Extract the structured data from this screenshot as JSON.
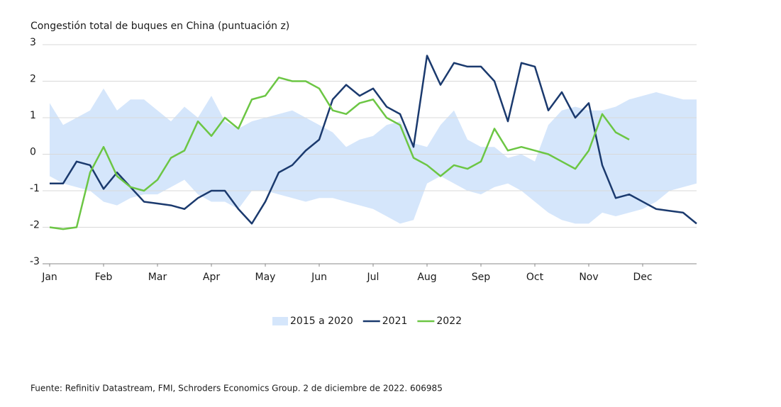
{
  "chart_data": {
    "type": "line",
    "title": "Congestión total de buques en China (puntuación z)",
    "note": "Fuente: Refinitiv Datastream, FMI, Schroders Economics Group. 2 de diciembre de 2022. 606985",
    "x": [
      0,
      0.25,
      0.5,
      0.75,
      1,
      1.25,
      1.5,
      1.75,
      2,
      2.25,
      2.5,
      2.75,
      3,
      3.25,
      3.5,
      3.75,
      4,
      4.25,
      4.5,
      4.75,
      5,
      5.25,
      5.5,
      5.75,
      6,
      6.25,
      6.5,
      6.75,
      7,
      7.25,
      7.5,
      7.75,
      8,
      8.25,
      8.5,
      8.75,
      9,
      9.25,
      9.5,
      9.75,
      10,
      10.25,
      10.5,
      10.75,
      11,
      11.25,
      11.5,
      11.75,
      12
    ],
    "xlim": [
      0,
      12
    ],
    "xticks": [
      {
        "value": 0,
        "label": "Jan"
      },
      {
        "value": 1,
        "label": "Feb"
      },
      {
        "value": 2,
        "label": "Mar"
      },
      {
        "value": 3,
        "label": "Apr"
      },
      {
        "value": 4,
        "label": "May"
      },
      {
        "value": 5,
        "label": "Jun"
      },
      {
        "value": 6,
        "label": "Jul"
      },
      {
        "value": 7,
        "label": "Aug"
      },
      {
        "value": 8,
        "label": "Sep"
      },
      {
        "value": 9,
        "label": "Oct"
      },
      {
        "value": 10,
        "label": "Nov"
      },
      {
        "value": 11,
        "label": "Dec"
      }
    ],
    "ylim": [
      -3,
      3
    ],
    "yticks": [
      -3,
      -2,
      -1,
      0,
      1,
      2,
      3
    ],
    "grid": true,
    "series": [
      {
        "name": "2015 a 2020",
        "color": "#d5e6fb",
        "high": [
          1.4,
          0.8,
          1.0,
          1.2,
          1.8,
          1.2,
          1.5,
          1.5,
          1.2,
          0.9,
          1.3,
          1.0,
          1.6,
          0.9,
          0.7,
          0.9,
          1.0,
          1.1,
          1.2,
          1.0,
          0.8,
          0.6,
          0.2,
          0.4,
          0.5,
          0.8,
          0.9,
          0.3,
          0.2,
          0.8,
          1.2,
          0.4,
          0.2,
          0.2,
          -0.1,
          0.0,
          -0.2,
          0.8,
          1.2,
          1.3,
          1.2,
          1.2,
          1.3,
          1.5,
          1.6,
          1.7,
          1.6,
          1.5,
          1.5
        ],
        "low": [
          -0.6,
          -0.8,
          -0.9,
          -1.0,
          -1.3,
          -1.4,
          -1.2,
          -1.1,
          -1.1,
          -0.9,
          -0.7,
          -1.1,
          -1.3,
          -1.3,
          -1.5,
          -1.0,
          -1.0,
          -1.1,
          -1.2,
          -1.3,
          -1.2,
          -1.2,
          -1.3,
          -1.4,
          -1.5,
          -1.7,
          -1.9,
          -1.8,
          -0.8,
          -0.6,
          -0.8,
          -1.0,
          -1.1,
          -0.9,
          -0.8,
          -1.0,
          -1.3,
          -1.6,
          -1.8,
          -1.9,
          -1.9,
          -1.6,
          -1.7,
          -1.6,
          -1.5,
          -1.3,
          -1.0,
          -0.9,
          -0.8
        ]
      },
      {
        "name": "2021",
        "color": "#1b3a6e",
        "values": [
          -0.8,
          -0.8,
          -0.2,
          -0.3,
          -0.95,
          -0.5,
          -0.9,
          -1.3,
          -1.35,
          -1.4,
          -1.5,
          -1.2,
          -1.0,
          -1.0,
          -1.5,
          -1.9,
          -1.3,
          -0.5,
          -0.3,
          0.1,
          0.4,
          1.5,
          1.9,
          1.6,
          1.8,
          1.3,
          1.1,
          0.2,
          2.7,
          1.9,
          2.5,
          2.4,
          2.4,
          2.0,
          0.9,
          2.5,
          2.4,
          1.2,
          1.7,
          1.0,
          1.4,
          -0.3,
          -1.2,
          -1.1,
          -1.3,
          -1.5,
          -1.55,
          -1.6,
          -1.9
        ]
      },
      {
        "name": "2022",
        "color": "#6cc644",
        "values": [
          -2.0,
          -2.05,
          -2.0,
          -0.5,
          0.2,
          -0.6,
          -0.9,
          -1.0,
          -0.7,
          -0.1,
          0.1,
          0.9,
          0.5,
          1.0,
          0.7,
          1.5,
          1.6,
          2.1,
          2.0,
          2.0,
          1.8,
          1.2,
          1.1,
          1.4,
          1.5,
          1.0,
          0.8,
          -0.1,
          -0.3,
          -0.6,
          -0.3,
          -0.4,
          -0.2,
          0.7,
          0.1,
          0.2,
          0.1,
          0.0,
          -0.2,
          -0.4,
          0.1,
          1.1,
          0.6,
          0.4,
          null,
          null,
          null,
          null,
          null
        ]
      }
    ]
  }
}
